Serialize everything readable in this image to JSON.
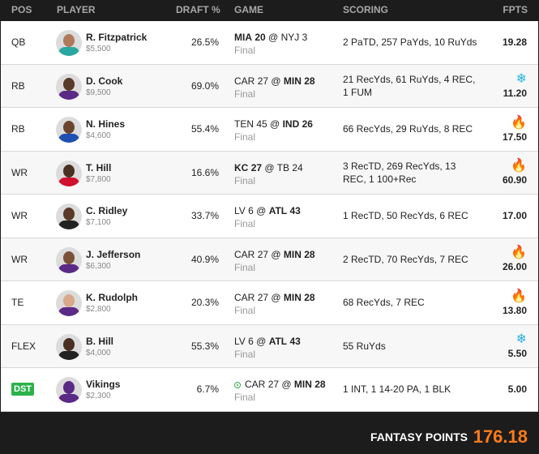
{
  "header": {
    "pos": "POS",
    "player": "PLAYER",
    "draft": "DRAFT %",
    "game": "GAME",
    "scoring": "SCORING",
    "fpts": "FPTS"
  },
  "rows": [
    {
      "pos": "QB",
      "name": "R. Fitzpatrick",
      "salary": "$5,500",
      "draft": "26.5%",
      "game_a": "MIA",
      "score_a": "20",
      "game_b": "NYJ",
      "score_b": "3",
      "bold": "a",
      "status": "Final",
      "scoring": "2 PaTD, 257 PaYds, 10 RuYds",
      "fpts": "19.28",
      "icon": "",
      "live": false,
      "skin": "#b07a5a",
      "jersey": "#2aa7a0"
    },
    {
      "pos": "RB",
      "name": "D. Cook",
      "salary": "$9,500",
      "draft": "69.0%",
      "game_a": "CAR",
      "score_a": "27",
      "game_b": "MIN",
      "score_b": "28",
      "bold": "b",
      "status": "Final",
      "scoring": "21 RecYds, 61 RuYds, 4 REC, 1 FUM",
      "fpts": "11.20",
      "icon": "snow",
      "live": false,
      "skin": "#5a3a28",
      "jersey": "#5b2a86"
    },
    {
      "pos": "RB",
      "name": "N. Hines",
      "salary": "$4,600",
      "draft": "55.4%",
      "game_a": "TEN",
      "score_a": "45",
      "game_b": "IND",
      "score_b": "26",
      "bold": "b",
      "status": "Final",
      "scoring": "66 RecYds, 29 RuYds, 8 REC",
      "fpts": "17.50",
      "icon": "fire",
      "live": false,
      "skin": "#6b4430",
      "jersey": "#1f4fb0"
    },
    {
      "pos": "WR",
      "name": "T. Hill",
      "salary": "$7,800",
      "draft": "16.6%",
      "game_a": "KC",
      "score_a": "27",
      "game_b": "TB",
      "score_b": "24",
      "bold": "a",
      "status": "Final",
      "scoring": "3 RecTD, 269 RecYds, 13 REC, 1 100+Rec",
      "fpts": "60.90",
      "icon": "fire",
      "live": false,
      "skin": "#4a3022",
      "jersey": "#d0102e"
    },
    {
      "pos": "WR",
      "name": "C. Ridley",
      "salary": "$7,100",
      "draft": "33.7%",
      "game_a": "LV",
      "score_a": "6",
      "game_b": "ATL",
      "score_b": "43",
      "bold": "b",
      "status": "Final",
      "scoring": "1 RecTD, 50 RecYds, 6 REC",
      "fpts": "17.00",
      "icon": "",
      "live": false,
      "skin": "#5a3a28",
      "jersey": "#222222"
    },
    {
      "pos": "WR",
      "name": "J. Jefferson",
      "salary": "$6,300",
      "draft": "40.9%",
      "game_a": "CAR",
      "score_a": "27",
      "game_b": "MIN",
      "score_b": "28",
      "bold": "b",
      "status": "Final",
      "scoring": "2 RecTD, 70 RecYds, 7 REC",
      "fpts": "26.00",
      "icon": "fire",
      "live": false,
      "skin": "#7a5038",
      "jersey": "#5b2a86"
    },
    {
      "pos": "TE",
      "name": "K. Rudolph",
      "salary": "$2,800",
      "draft": "20.3%",
      "game_a": "CAR",
      "score_a": "27",
      "game_b": "MIN",
      "score_b": "28",
      "bold": "b",
      "status": "Final",
      "scoring": "68 RecYds, 7 REC",
      "fpts": "13.80",
      "icon": "fire",
      "live": false,
      "skin": "#d9a88a",
      "jersey": "#5b2a86"
    },
    {
      "pos": "FLEX",
      "name": "B. Hill",
      "salary": "$4,000",
      "draft": "55.3%",
      "game_a": "LV",
      "score_a": "6",
      "game_b": "ATL",
      "score_b": "43",
      "bold": "b",
      "status": "Final",
      "scoring": "55 RuYds",
      "fpts": "5.50",
      "icon": "snow",
      "live": false,
      "skin": "#4a3022",
      "jersey": "#222222"
    },
    {
      "pos": "DST",
      "name": "Vikings",
      "salary": "$2,300",
      "draft": "6.7%",
      "game_a": "CAR",
      "score_a": "27",
      "game_b": "MIN",
      "score_b": "28",
      "bold": "b",
      "status": "Final",
      "scoring": "1 INT, 1 14-20 PA, 1 BLK",
      "fpts": "5.00",
      "icon": "",
      "live": true,
      "skin": "#5b2a86",
      "jersey": "#5b2a86",
      "dst": true
    }
  ],
  "footer": {
    "label": "FANTASY POINTS",
    "total": "176.18"
  },
  "colors": {
    "accent_orange": "#ff7a1a",
    "fire": "#ea4335",
    "snow": "#2bb3d9",
    "dst_badge": "#2bb24c"
  }
}
